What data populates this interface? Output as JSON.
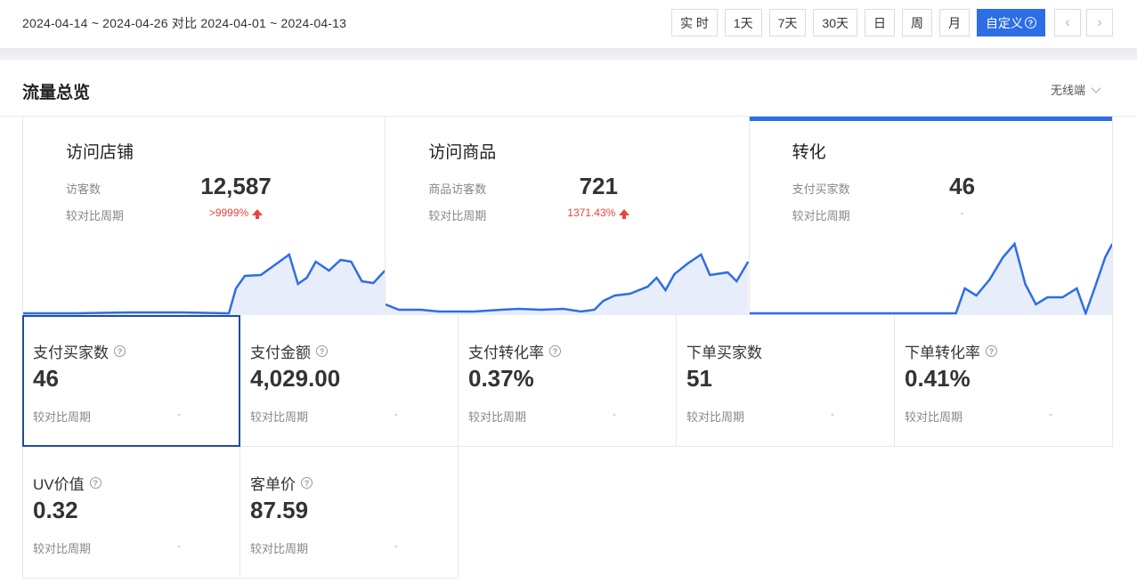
{
  "topbar": {
    "date_range": "2024-04-14 ~ 2024-04-26 对比 2024-04-01 ~ 2024-04-13",
    "buttons": [
      "实 时",
      "1天",
      "7天",
      "30天",
      "日",
      "周",
      "月",
      "自定义"
    ],
    "active_button": "自定义",
    "prev_icon": "chevron-left-icon",
    "next_icon": "chevron-right-icon"
  },
  "section": {
    "title": "流量总览",
    "device": "无线端"
  },
  "cards": [
    {
      "title": "访问店铺",
      "label": "访客数",
      "value": "12,587",
      "cmp_label": "较对比周期",
      "cmp": ">9999%",
      "trend": "up"
    },
    {
      "title": "访问商品",
      "label": "商品访客数",
      "value": "721",
      "cmp_label": "较对比周期",
      "cmp": "1371.43%",
      "trend": "up"
    },
    {
      "title": "转化",
      "label": "支付买家数",
      "value": "46",
      "cmp_label": "较对比周期",
      "cmp": "-",
      "trend": "none"
    }
  ],
  "metrics": [
    {
      "name": "支付买家数",
      "value": "46",
      "cmp_label": "较对比周期",
      "cmp": "-"
    },
    {
      "name": "支付金额",
      "value": "4,029.00",
      "cmp_label": "较对比周期",
      "cmp": "-"
    },
    {
      "name": "支付转化率",
      "value": "0.37%",
      "cmp_label": "较对比周期",
      "cmp": "-"
    },
    {
      "name": "下单买家数",
      "value": "51",
      "cmp_label": "较对比周期",
      "cmp": "-"
    },
    {
      "name": "下单转化率",
      "value": "0.41%",
      "cmp_label": "较对比周期",
      "cmp": "-"
    },
    {
      "name": "UV价值",
      "value": "0.32",
      "cmp_label": "较对比周期",
      "cmp": "-"
    },
    {
      "name": "客单价",
      "value": "87.59",
      "cmp_label": "较对比周期",
      "cmp": "-"
    }
  ],
  "colors": {
    "accent": "#2d6ee6",
    "up": "#e8453c",
    "selected_border": "#1f4e9c",
    "spark_fill": "#e8eef9"
  }
}
